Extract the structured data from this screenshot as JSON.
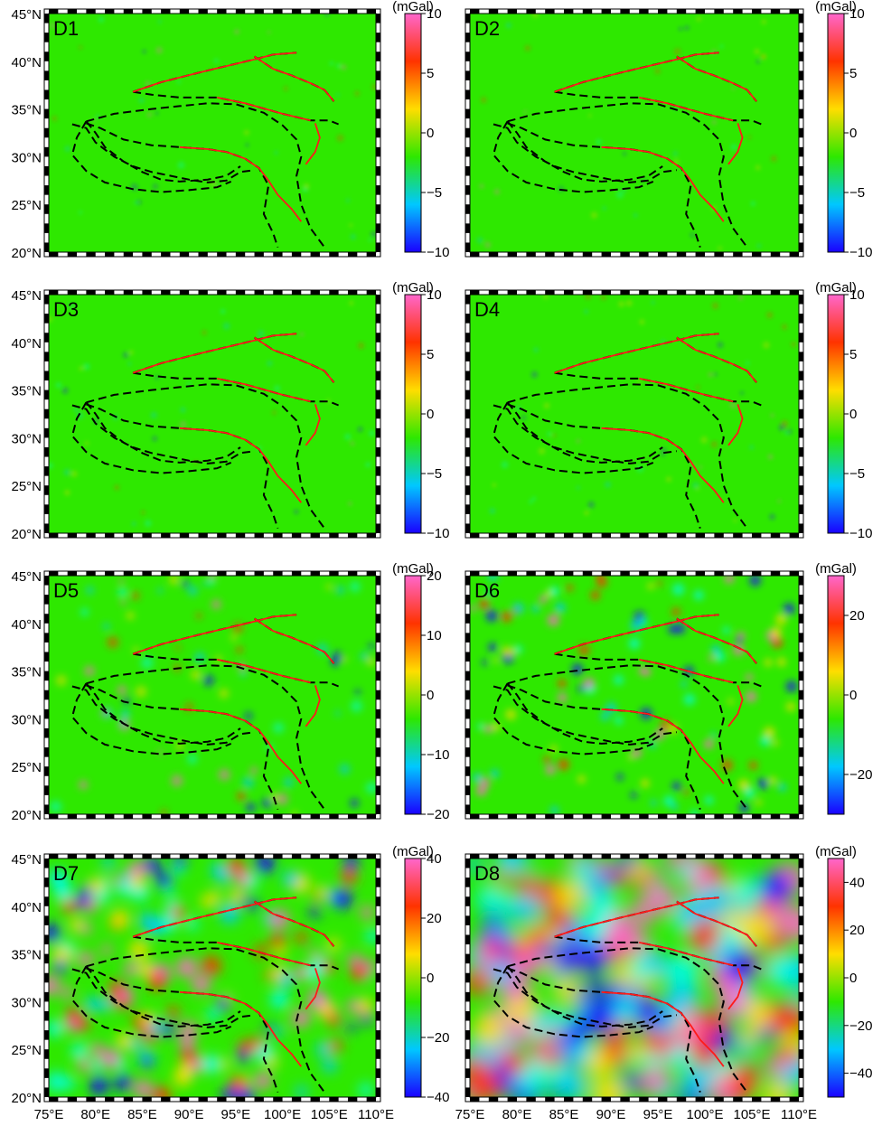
{
  "colors": {
    "background": "#2ee800",
    "fault_red": "#ff1a1a",
    "boundary_black": "#000000"
  },
  "colormap_stops": [
    "#1a00ff",
    "#00c8ff",
    "#2ee800",
    "#ffdd00",
    "#ff3300",
    "#ff66cc"
  ],
  "chart_data": [
    {
      "type": "heatmap",
      "panel_label": "D1",
      "unit": "(mGal)",
      "clim": [
        -10,
        10
      ],
      "colorbar_ticks": [
        -10,
        -5,
        0,
        5,
        10
      ],
      "lat_ticks": [
        "45°N",
        "40°N",
        "35°N",
        "30°N",
        "25°N",
        "20°N"
      ],
      "lon_ticks": [],
      "noise_level": 0.02
    },
    {
      "type": "heatmap",
      "panel_label": "D2",
      "unit": "(mGal)",
      "clim": [
        -10,
        10
      ],
      "colorbar_ticks": [
        -10,
        -5,
        0,
        5,
        10
      ],
      "lat_ticks": [],
      "lon_ticks": [],
      "noise_level": 0.02
    },
    {
      "type": "heatmap",
      "panel_label": "D3",
      "unit": "(mGal)",
      "clim": [
        -10,
        10
      ],
      "colorbar_ticks": [
        -10,
        -5,
        0,
        5,
        10
      ],
      "lat_ticks": [
        "45°N",
        "40°N",
        "35°N",
        "30°N",
        "25°N",
        "20°N"
      ],
      "lon_ticks": [],
      "noise_level": 0.03
    },
    {
      "type": "heatmap",
      "panel_label": "D4",
      "unit": "(mGal)",
      "clim": [
        -10,
        10
      ],
      "colorbar_ticks": [
        -10,
        -5,
        0,
        5,
        10
      ],
      "lat_ticks": [],
      "lon_ticks": [],
      "noise_level": 0.08
    },
    {
      "type": "heatmap",
      "panel_label": "D5",
      "unit": "(mGal)",
      "clim": [
        -20,
        20
      ],
      "colorbar_ticks": [
        -20,
        -10,
        0,
        10,
        20
      ],
      "lat_ticks": [
        "45°N",
        "40°N",
        "35°N",
        "30°N",
        "25°N",
        "20°N"
      ],
      "lon_ticks": [],
      "noise_level": 0.15
    },
    {
      "type": "heatmap",
      "panel_label": "D6",
      "unit": "(mGal)",
      "clim": [
        -30,
        30
      ],
      "colorbar_ticks": [
        -20,
        0,
        20
      ],
      "lat_ticks": [],
      "lon_ticks": [],
      "noise_level": 0.3
    },
    {
      "type": "heatmap",
      "panel_label": "D7",
      "unit": "(mGal)",
      "clim": [
        -40,
        40
      ],
      "colorbar_ticks": [
        -40,
        -20,
        0,
        20,
        40
      ],
      "lat_ticks": [
        "45°N",
        "40°N",
        "35°N",
        "30°N",
        "25°N",
        "20°N"
      ],
      "lon_ticks": [
        "75°E",
        "80°E",
        "85°E",
        "90°E",
        "95°E",
        "100°E",
        "105°E",
        "110°E"
      ],
      "noise_level": 0.5
    },
    {
      "type": "heatmap",
      "panel_label": "D8",
      "unit": "(mGal)",
      "clim": [
        -50,
        50
      ],
      "colorbar_ticks": [
        -40,
        -20,
        0,
        20,
        40
      ],
      "lat_ticks": [],
      "lon_ticks": [
        "75°E",
        "80°E",
        "85°E",
        "90°E",
        "95°E",
        "100°E",
        "105°E",
        "110°E"
      ],
      "noise_level": 0.7
    }
  ],
  "map_extent": {
    "lon": [
      75,
      110
    ],
    "lat": [
      20,
      45
    ]
  },
  "boundary_lines": [
    [
      [
        77.5,
        33.4
      ],
      [
        79,
        33
      ],
      [
        80,
        31.5
      ],
      [
        82,
        30
      ],
      [
        84,
        29
      ],
      [
        86,
        28.4
      ],
      [
        88,
        28
      ],
      [
        90,
        27.6
      ],
      [
        92,
        27.3
      ],
      [
        94,
        27.5
      ],
      [
        95.5,
        28.4
      ],
      [
        97,
        28.6
      ]
    ],
    [
      [
        79,
        33.7
      ],
      [
        80,
        32.5
      ],
      [
        81,
        31
      ],
      [
        83,
        29.5
      ],
      [
        85,
        28.4
      ],
      [
        87,
        27.6
      ],
      [
        89,
        27.4
      ],
      [
        92,
        27.6
      ],
      [
        94,
        28
      ],
      [
        95.5,
        29
      ]
    ],
    [
      [
        79,
        33.5
      ],
      [
        80.5,
        33
      ],
      [
        83,
        31.8
      ],
      [
        86,
        31.2
      ],
      [
        89,
        31
      ],
      [
        92,
        30.8
      ],
      [
        94,
        30.5
      ],
      [
        96,
        29.8
      ],
      [
        97.5,
        28.8
      ],
      [
        98.5,
        27
      ],
      [
        98,
        24
      ],
      [
        99,
        22
      ],
      [
        99.5,
        20.5
      ]
    ],
    [
      [
        79,
        33.7
      ],
      [
        82,
        34.5
      ],
      [
        86,
        35
      ],
      [
        89,
        35.3
      ],
      [
        92,
        35.6
      ],
      [
        95,
        35.5
      ],
      [
        98,
        34.6
      ],
      [
        100,
        33.3
      ],
      [
        101.5,
        31.8
      ],
      [
        102,
        30
      ],
      [
        101.5,
        28
      ],
      [
        102,
        25
      ],
      [
        103,
        22.5
      ],
      [
        104.5,
        20.5
      ]
    ],
    [
      [
        84,
        36.8
      ],
      [
        87,
        37.8
      ],
      [
        91,
        38.8
      ],
      [
        94,
        39.5
      ],
      [
        97,
        40.2
      ],
      [
        99,
        40.7
      ],
      [
        101.5,
        40.9
      ]
    ],
    [
      [
        84,
        36.8
      ],
      [
        86,
        36.5
      ],
      [
        89,
        36.2
      ],
      [
        93,
        36.2
      ],
      [
        96,
        35.6
      ],
      [
        100,
        34.5
      ],
      [
        103,
        33.8
      ],
      [
        105,
        33.8
      ],
      [
        106,
        33.4
      ]
    ],
    [
      [
        97,
        40.5
      ],
      [
        99,
        39.2
      ],
      [
        101,
        38.5
      ],
      [
        103,
        37.7
      ],
      [
        104.5,
        37
      ],
      [
        105.5,
        35.8
      ]
    ],
    [
      [
        79,
        33.7
      ],
      [
        78,
        32
      ],
      [
        77.5,
        30.2
      ],
      [
        79,
        28.5
      ],
      [
        81,
        27.3
      ],
      [
        84,
        26.6
      ],
      [
        87,
        26.3
      ],
      [
        90,
        26.5
      ],
      [
        93,
        26.8
      ],
      [
        94.5,
        27.4
      ]
    ]
  ],
  "red_faults": [
    [
      [
        84,
        36.8
      ],
      [
        87,
        37.8
      ],
      [
        91,
        38.8
      ],
      [
        94,
        39.5
      ],
      [
        97,
        40.2
      ],
      [
        99,
        40.7
      ],
      [
        101.5,
        40.9
      ]
    ],
    [
      [
        97,
        40.5
      ],
      [
        99,
        39.2
      ],
      [
        101,
        38.5
      ],
      [
        103,
        37.7
      ],
      [
        104.5,
        37
      ],
      [
        105.5,
        35.8
      ]
    ],
    [
      [
        89,
        31
      ],
      [
        92,
        30.8
      ],
      [
        94,
        30.5
      ],
      [
        96,
        29.8
      ],
      [
        97.5,
        28.8
      ],
      [
        98.5,
        27.5
      ],
      [
        99.5,
        26
      ],
      [
        101,
        24.5
      ],
      [
        102,
        23.2
      ]
    ],
    [
      [
        93,
        36.2
      ],
      [
        96,
        35.6
      ],
      [
        100,
        34.5
      ],
      [
        103,
        33.8
      ]
    ],
    [
      [
        103.5,
        33.5
      ],
      [
        104,
        32
      ],
      [
        103.5,
        30.5
      ],
      [
        102.5,
        29.2
      ]
    ]
  ]
}
